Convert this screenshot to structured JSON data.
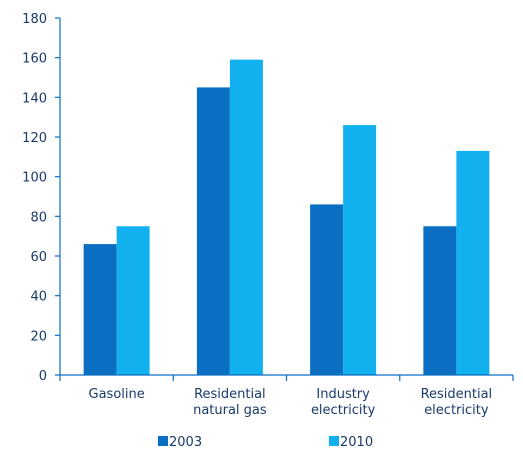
{
  "chart_data": {
    "type": "bar",
    "categories": [
      [
        "Gasoline"
      ],
      [
        "Residential",
        "natural gas"
      ],
      [
        "Industry",
        "electricity"
      ],
      [
        "Residential",
        "electricity"
      ]
    ],
    "series": [
      {
        "name": "2003",
        "values": [
          66,
          145,
          86,
          75
        ],
        "color": "#0a6ec2"
      },
      {
        "name": "2010",
        "values": [
          75,
          159,
          126,
          113
        ],
        "color": "#12b0ee"
      }
    ],
    "yticks": [
      "0",
      "20",
      "40",
      "60",
      "80",
      "100",
      "120",
      "140",
      "160",
      "180"
    ],
    "ylim": [
      0,
      180
    ],
    "grid": false,
    "legend_position": "bottom",
    "axis_color": "#0a6ec2",
    "text_color": "#1a3a6b"
  }
}
